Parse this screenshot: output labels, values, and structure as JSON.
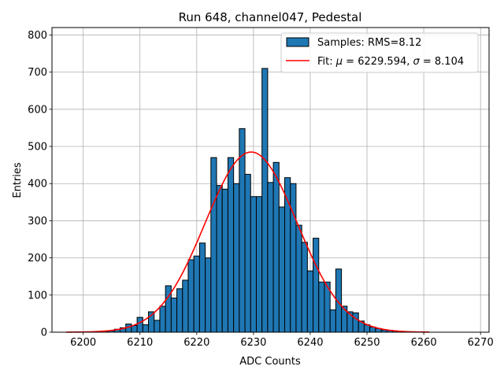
{
  "chart_data": {
    "type": "bar",
    "title": "Run 648, channel047, Pedestal",
    "xlabel": "ADC Counts",
    "ylabel": "Entries",
    "xlim": [
      6194.5,
      6271.5
    ],
    "ylim": [
      0,
      820
    ],
    "xticks": [
      6200,
      6210,
      6220,
      6230,
      6240,
      6250,
      6260,
      6270
    ],
    "yticks": [
      0,
      100,
      200,
      300,
      400,
      500,
      600,
      700,
      800
    ],
    "grid": true,
    "legend_position": "top-right",
    "bar_color": "#1f77b4",
    "fit_color": "#ff0000",
    "histogram": {
      "name": "Samples: RMS=8.12",
      "bin_centers": [
        6200,
        6201,
        6202,
        6203,
        6204,
        6205,
        6206,
        6207,
        6208,
        6209,
        6210,
        6211,
        6212,
        6213,
        6214,
        6215,
        6216,
        6217,
        6218,
        6219,
        6220,
        6221,
        6222,
        6223,
        6224,
        6225,
        6226,
        6227,
        6228,
        6229,
        6230,
        6231,
        6232,
        6233,
        6234,
        6235,
        6236,
        6237,
        6238,
        6239,
        6240,
        6241,
        6242,
        6243,
        6244,
        6245,
        6246,
        6247,
        6248,
        6249,
        6250,
        6251,
        6252,
        6253,
        6254,
        6255,
        6256,
        6257,
        6258,
        6259,
        6260
      ],
      "counts": [
        0,
        0,
        0,
        0,
        2,
        4,
        8,
        12,
        22,
        18,
        40,
        20,
        55,
        32,
        70,
        125,
        92,
        117,
        140,
        195,
        205,
        240,
        200,
        470,
        395,
        385,
        470,
        400,
        548,
        425,
        365,
        365,
        710,
        403,
        457,
        337,
        416,
        400,
        288,
        242,
        165,
        253,
        135,
        135,
        60,
        170,
        70,
        55,
        52,
        30,
        20,
        14,
        10,
        6,
        5,
        3,
        2,
        0,
        0,
        0,
        0
      ]
    },
    "fit": {
      "name": "Fit: μ = 6229.594, σ = 8.104",
      "name_parts": [
        "Fit: ",
        "μ",
        " = 6229.594, ",
        "σ",
        " = 8.104"
      ],
      "mu": 6229.594,
      "sigma": 8.104,
      "amplitude": 485,
      "x_range": [
        6197,
        6261
      ]
    }
  }
}
